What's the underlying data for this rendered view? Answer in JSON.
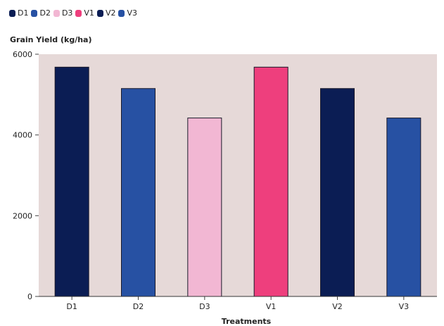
{
  "chart_data": {
    "type": "bar",
    "title": "",
    "ylabel": "Grain Yield (kg/ha)",
    "xlabel": "Treatments",
    "categories": [
      "D1",
      "D2",
      "D3",
      "V1",
      "V2",
      "V3"
    ],
    "values": [
      5680,
      5150,
      4420,
      5680,
      5150,
      4420
    ],
    "colors": [
      "#0b1d54",
      "#2751a3",
      "#f2b7d3",
      "#ee3f7d",
      "#0b1d54",
      "#2751a3"
    ],
    "ylim": [
      0,
      6000
    ],
    "yticks": [
      0,
      2000,
      4000,
      6000
    ],
    "background": "#e6d9d8",
    "grid": false,
    "legend_position": "top-left",
    "legend": [
      {
        "label": "D1",
        "color": "#0b1d54"
      },
      {
        "label": "D2",
        "color": "#2751a3"
      },
      {
        "label": "D3",
        "color": "#f2b7d3"
      },
      {
        "label": "V1",
        "color": "#ee3f7d"
      },
      {
        "label": "V2",
        "color": "#0b1d54"
      },
      {
        "label": "V3",
        "color": "#2751a3"
      }
    ]
  }
}
